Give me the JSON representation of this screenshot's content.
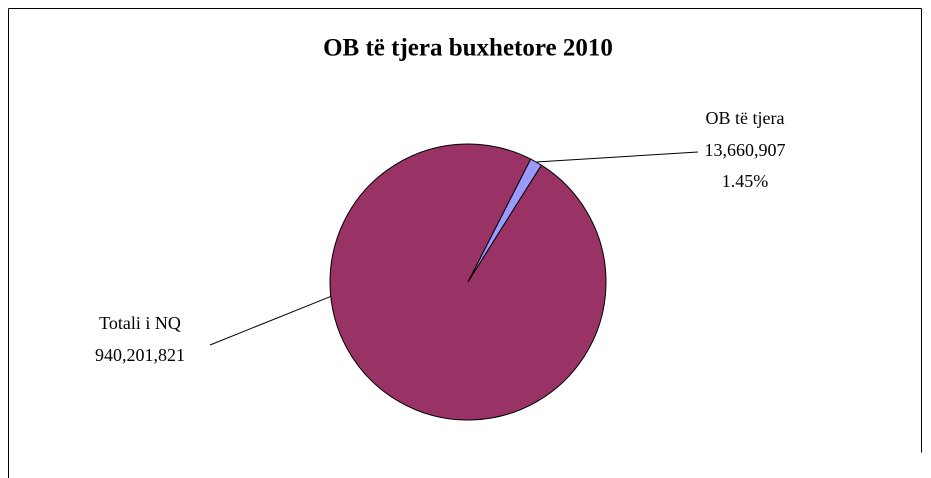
{
  "chart_data": {
    "type": "pie",
    "title": "OB të tjera buxhetore 2010",
    "categories": [
      "OB të tjera",
      "Totali i NQ"
    ],
    "values": [
      13660907,
      940201821
    ],
    "value_labels": [
      "13,660,907",
      "940,201,821"
    ],
    "percents": [
      1.45,
      null
    ],
    "percent_labels": [
      "1.45%",
      null
    ],
    "colors": [
      "#9999ff",
      "#993366"
    ]
  }
}
